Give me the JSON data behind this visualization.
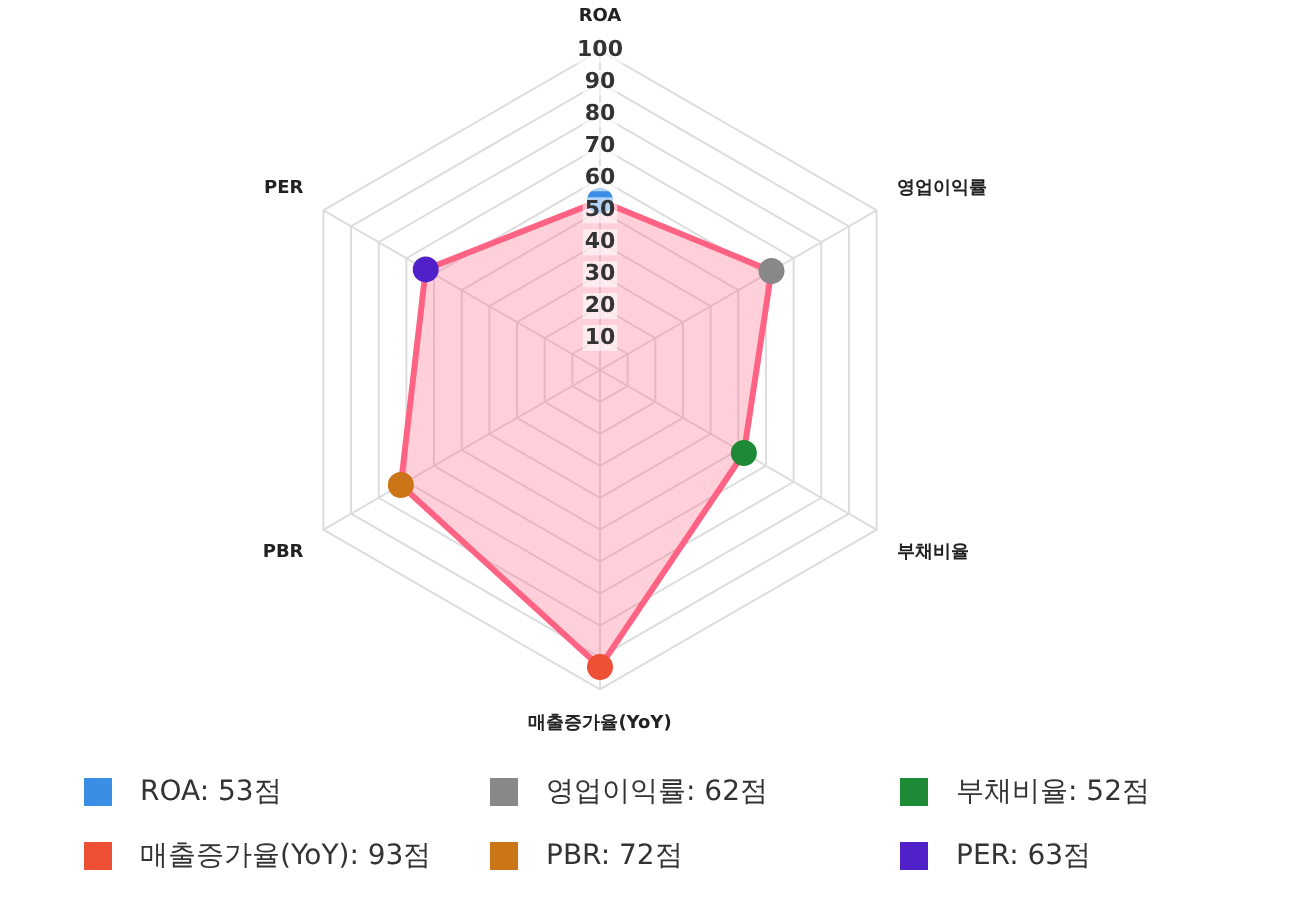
{
  "chart_data": {
    "type": "radar",
    "categories": [
      "ROA",
      "영업이익률",
      "부채비율",
      "매출증가율(YoY)",
      "PBR",
      "PER"
    ],
    "series": [
      {
        "color": "#ff6384",
        "values": [
          53,
          62,
          52,
          93,
          72,
          63
        ],
        "colors": [
          "#3a8ee6",
          "#888888",
          "#1e8a35",
          "#ee5035",
          "#cc7418",
          "#5020c8"
        ]
      }
    ],
    "annotations": [
      "ROA: 53점",
      "영업이익률: 62점",
      "부채비율: 52점",
      "매출증가율(YoY): 93점",
      "PBR: 72점",
      "PER: 63점"
    ],
    "ylim": [
      0,
      100
    ],
    "yticks": [
      10,
      20,
      30,
      40,
      50,
      60,
      70,
      80,
      90,
      100
    ],
    "grid": true,
    "marker": "circle"
  }
}
